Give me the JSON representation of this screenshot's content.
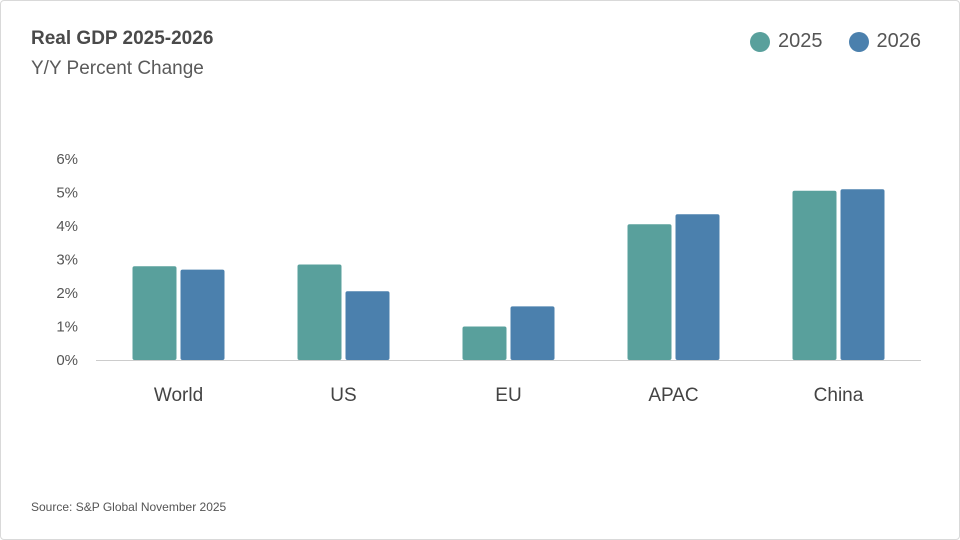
{
  "chart_data": {
    "type": "bar",
    "title": "Real GDP 2025-2026",
    "subtitle": "Y/Y Percent Change",
    "source": "Source: S&P Global November 2025",
    "categories": [
      "World",
      "US",
      "EU",
      "APAC",
      "China"
    ],
    "series": [
      {
        "name": "2025",
        "color": "#59a09c",
        "values": [
          2.8,
          2.85,
          1.0,
          4.05,
          5.05
        ]
      },
      {
        "name": "2026",
        "color": "#4b80ad",
        "values": [
          2.7,
          2.05,
          1.6,
          4.35,
          5.1
        ]
      }
    ],
    "y_ticks": [
      "0%",
      "1%",
      "2%",
      "3%",
      "4%",
      "5%",
      "6%"
    ],
    "ylim": [
      0,
      6
    ],
    "xlabel": "",
    "ylabel": "",
    "grid": false,
    "legend_position": "top-right"
  }
}
